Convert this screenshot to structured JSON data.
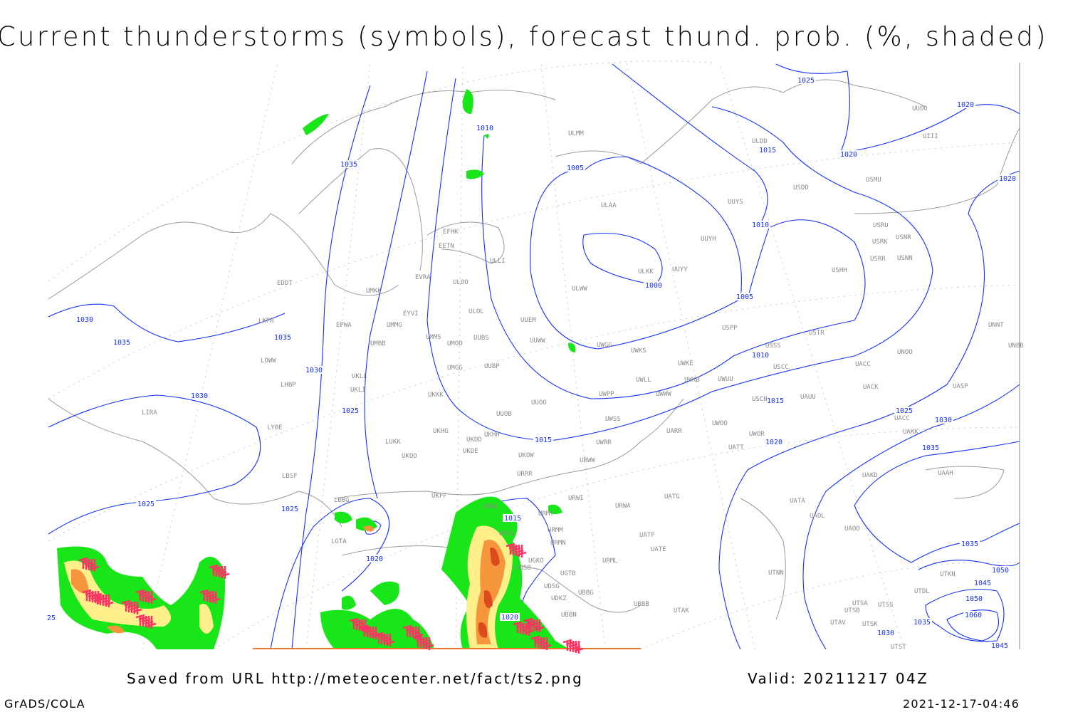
{
  "title": "Current thunderstorms (symbols), forecast thund. prob. (%, shaded)",
  "footer": {
    "source": "Saved from URL http://meteocenter.net/fact/ts2.png",
    "valid": "Valid: 20211217 04Z",
    "software": "GrADS/COLA",
    "timestamp": "2021-12-17-04:46"
  },
  "colors": {
    "isobar": "#1430ff",
    "coastline": "#9a9a9a",
    "prob_low": "#19e619",
    "prob_mid": "#fff08c",
    "prob_high": "#f5963c",
    "prob_max": "#dc4b1e",
    "storm_symbol": "#ff3264"
  },
  "isobar_labels": [
    "1035",
    "1010",
    "1005",
    "1025",
    "1020",
    "1015",
    "1020",
    "1020",
    "1010",
    "1000",
    "1005",
    "1030",
    "1035",
    "1035",
    "1030",
    "1030",
    "1025",
    "1010",
    "1015",
    "1015",
    "1025",
    "1030",
    "1035",
    "1020",
    "1025",
    "1025",
    "1015",
    "1020",
    "1020",
    "1035",
    "1050",
    "1045",
    "1050",
    "1060",
    "1035",
    "1030",
    "1045",
    "25"
  ],
  "stations": [
    "ULMM",
    "ULDD",
    "UUOO",
    "UIII",
    "USMU",
    "USDD",
    "ULAA",
    "UUYS",
    "USRU",
    "USRK",
    "USNR",
    "USRR",
    "USNN",
    "EFHK",
    "EETN",
    "ULLI",
    "UUYH",
    "UUYY",
    "ULKK",
    "USHH",
    "EVRA",
    "ULOO",
    "ULWW",
    "EDDT",
    "UMKK",
    "EYVI",
    "ULOL",
    "UUEM",
    "LKPR",
    "EPWA",
    "UMMG",
    "USPP",
    "USTR",
    "UNNT",
    "UMMS",
    "UMOO",
    "UUBS",
    "UUWW",
    "UWGG",
    "UWKS",
    "USSS",
    "UNOO",
    "UNBB",
    "UMBB",
    "LOWW",
    "UWKE",
    "USCC",
    "UACC",
    "UUBP",
    "UMGG",
    "UKLL",
    "UWLL",
    "UWKB",
    "UWUU",
    "LHBP",
    "UKLI",
    "UACK",
    "UASP",
    "UKKK",
    "UWPP",
    "UWWW",
    "USCN",
    "UAUU",
    "UUOO",
    "LIRA",
    "UUOB",
    "UWSS",
    "UACC",
    "UWOO",
    "LYBE",
    "UKHH",
    "UKHG",
    "UKDD",
    "UARR",
    "UAKK",
    "UWOR",
    "LUKK",
    "UWRR",
    "UATT",
    "UKDE",
    "UKOO",
    "UKOW",
    "URWW",
    "LBSF",
    "URRR",
    "UAKD",
    "UAAH",
    "UKFF",
    "LBBG",
    "URWI",
    "UATG",
    "URWA",
    "URKK",
    "URMT",
    "UATA",
    "UAOL",
    "URMM",
    "URSS",
    "UAOO",
    "UATF",
    "UATE",
    "URMN",
    "LGTA",
    "UGKO",
    "URML",
    "UGSB",
    "UGTB",
    "UTNN",
    "UTKN",
    "UDSG",
    "UBBG",
    "UDKZ",
    "UTDL",
    "UTSA",
    "UTSS",
    "UBBB",
    "UTAK",
    "UTSB",
    "UBBN",
    "UTAV",
    "UTSK",
    "UTST"
  ]
}
